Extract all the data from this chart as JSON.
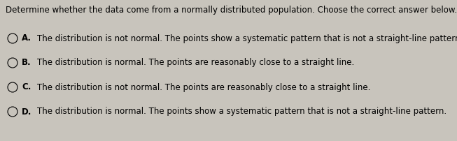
{
  "title": "Determine whether the data come from a normally distributed population. Choose the correct answer below.",
  "options": [
    {
      "label": "A.",
      "text": "The distribution is not normal. The points show a systematic pattern that is not a straight-line pattern."
    },
    {
      "label": "B.",
      "text": "The distribution is normal. The points are reasonably close to a straight line."
    },
    {
      "label": "C.",
      "text": "The distribution is not normal. The points are reasonably close to a straight line."
    },
    {
      "label": "D.",
      "text": "The distribution is normal. The points show a systematic pattern that is not a straight-line pattern."
    }
  ],
  "background_color": "#c8c4bc",
  "text_color": "#000000",
  "title_fontsize": 8.5,
  "option_fontsize": 8.5,
  "circle_color": "#c8c4bc",
  "circle_edge_color": "#000000"
}
